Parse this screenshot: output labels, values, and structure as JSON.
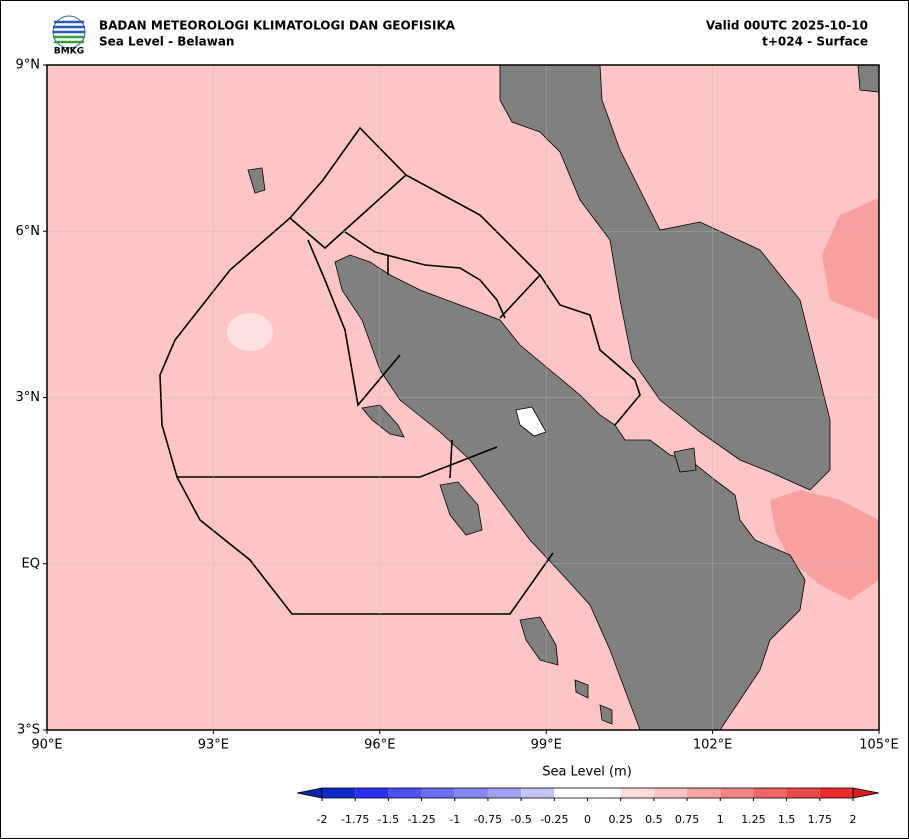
{
  "header": {
    "logo_text": "BMKG",
    "agency": "BADAN METEOROLOGI KLIMATOLOGI DAN GEOFISIKA",
    "product": "Sea Level - Belawan",
    "valid": "Valid 00UTC 2025-10-10",
    "step": "t+024 - Surface"
  },
  "map": {
    "xlim": [
      90,
      105
    ],
    "ylim": [
      -3,
      9
    ],
    "grid": true,
    "sea_color": "#fdc5c5",
    "land_color": "#808080",
    "xticks": [
      {
        "value": 90,
        "label": "90°E"
      },
      {
        "value": 93,
        "label": "93°E"
      },
      {
        "value": 96,
        "label": "96°E"
      },
      {
        "value": 99,
        "label": "99°E"
      },
      {
        "value": 102,
        "label": "102°E"
      },
      {
        "value": 105,
        "label": "105°E"
      }
    ],
    "yticks": [
      {
        "value": 9,
        "label": "9°N"
      },
      {
        "value": 6,
        "label": "6°N"
      },
      {
        "value": 3,
        "label": "3°N"
      },
      {
        "value": 0,
        "label": "EQ"
      },
      {
        "value": -3,
        "label": "3°S"
      }
    ]
  },
  "colorbar": {
    "label": "Sea Level (m)",
    "ticks": [
      -2,
      -1.75,
      -1.5,
      -1.25,
      -1,
      -0.75,
      -0.5,
      -0.25,
      0,
      0.25,
      0.5,
      0.75,
      1,
      1.25,
      1.5,
      1.75,
      2
    ],
    "colors": [
      "#0d2bc8",
      "#2a2ef0",
      "#4d52f2",
      "#6a6ef0",
      "#8487f2",
      "#9fa1f0",
      "#c4c6f8",
      "#ffffff",
      "#ffffff",
      "#fddcdc",
      "#fbc4c4",
      "#f7a2a2",
      "#f48585",
      "#f06666",
      "#ee4848",
      "#ec2c2c"
    ],
    "under_color": "#0a24b0",
    "over_color": "#d41e1e"
  }
}
